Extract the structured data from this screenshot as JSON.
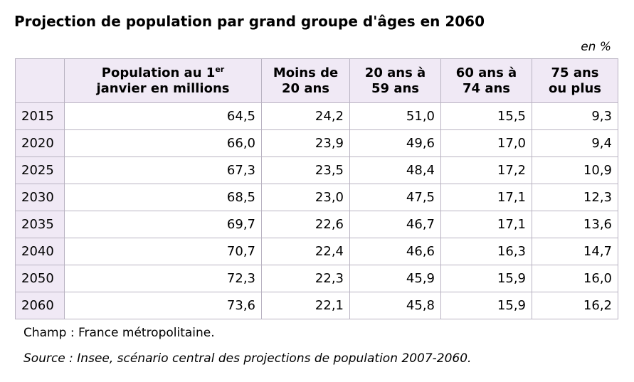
{
  "title": "Projection de population par grand groupe d'âges en 2060",
  "unit_note": "en %",
  "headers": {
    "population_line1": "Population au 1",
    "population_sup": "er",
    "population_line2": "janvier en millions",
    "col2_line1": "Moins de",
    "col2_line2": "20 ans",
    "col3_line1": "20 ans à",
    "col3_line2": "59 ans",
    "col4_line1": "60 ans à",
    "col4_line2": "74 ans",
    "col5_line1": "75 ans",
    "col5_line2": "ou plus"
  },
  "chart_data": {
    "type": "table",
    "title": "Projection de population par grand groupe d'âges en 2060",
    "unit": "en %",
    "columns": [
      "Population au 1er janvier en millions",
      "Moins de 20 ans",
      "20 ans à 59 ans",
      "60 ans à 74 ans",
      "75 ans ou plus"
    ],
    "rows": [
      {
        "year": "2015",
        "values": [
          "64,5",
          "24,2",
          "51,0",
          "15,5",
          "9,3"
        ]
      },
      {
        "year": "2020",
        "values": [
          "66,0",
          "23,9",
          "49,6",
          "17,0",
          "9,4"
        ]
      },
      {
        "year": "2025",
        "values": [
          "67,3",
          "23,5",
          "48,4",
          "17,2",
          "10,9"
        ]
      },
      {
        "year": "2030",
        "values": [
          "68,5",
          "23,0",
          "47,5",
          "17,1",
          "12,3"
        ]
      },
      {
        "year": "2035",
        "values": [
          "69,7",
          "22,6",
          "46,7",
          "17,1",
          "13,6"
        ]
      },
      {
        "year": "2040",
        "values": [
          "70,7",
          "22,4",
          "46,6",
          "16,3",
          "14,7"
        ]
      },
      {
        "year": "2050",
        "values": [
          "72,3",
          "22,3",
          "45,9",
          "15,9",
          "16,0"
        ]
      },
      {
        "year": "2060",
        "values": [
          "73,6",
          "22,1",
          "45,8",
          "15,9",
          "16,2"
        ]
      }
    ]
  },
  "footer": {
    "champ": "Champ : France métropolitaine.",
    "source": "Source : Insee, scénario central des projections de population 2007-2060."
  }
}
